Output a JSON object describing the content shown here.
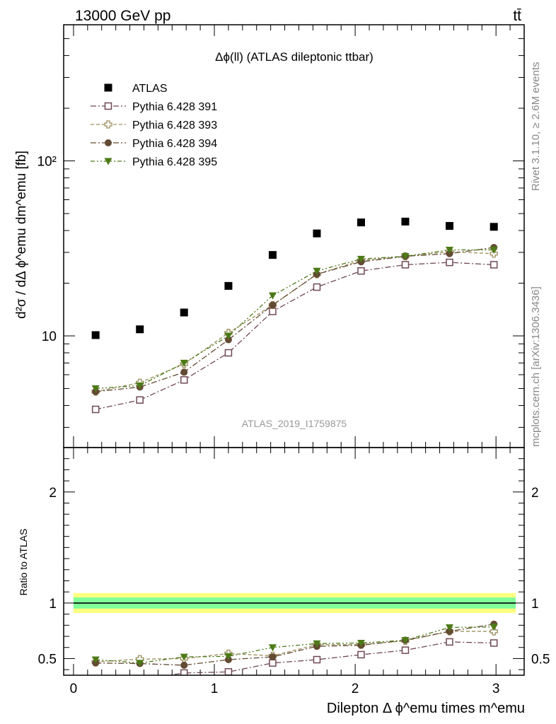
{
  "header": {
    "energy": "13000 GeV pp",
    "process": "tt̄"
  },
  "side_labels": {
    "rivet": "Rivet 3.1.10, ≥ 2.6M events",
    "mcplots": "mcplots.cern.ch [arXiv:1306.3436]"
  },
  "analysis_id": "ATLAS_2019_I1759875",
  "colors": {
    "ATLAS": "#000000",
    "Pythia 6.428 391": "#6f4856",
    "Pythia 6.428 393": "#9a8e5e",
    "Pythia 6.428 394": "#634a33",
    "Pythia 6.428 395": "#4c7a17",
    "band_inner": "#80ff99",
    "band_outer": "#ffff80"
  },
  "chart_data": [
    {
      "type": "scatter",
      "panel": "main",
      "title": "Δϕ(ll) (ATLAS dileptonic ttbar)",
      "ylabel": "d²σ / dΔ ϕ^emu dm^emu [fb]",
      "yscale": "log",
      "ylim": [
        2.3,
        600
      ],
      "xlim": [
        -0.07,
        3.2
      ],
      "ytick_labels": [
        "10",
        "10²"
      ],
      "legend_position": "top-left",
      "x": [
        0.157,
        0.471,
        0.785,
        1.1,
        1.414,
        1.728,
        2.042,
        2.356,
        2.67,
        2.985
      ],
      "series": [
        {
          "name": "ATLAS",
          "marker": "filled-square",
          "values": [
            10.1,
            10.9,
            13.6,
            19.3,
            29.0,
            38.5,
            44.5,
            45.0,
            42.5,
            42.0
          ],
          "errors": [
            0.4,
            0.4,
            0.5,
            0.6,
            0.8,
            1.0,
            1.1,
            1.1,
            1.0,
            1.0
          ]
        },
        {
          "name": "Pythia 6.428 391",
          "marker": "open-square",
          "line": "dash-dot",
          "values": [
            3.8,
            4.3,
            5.6,
            8.0,
            13.8,
            19.0,
            23.5,
            25.5,
            26.3,
            25.5
          ],
          "errors": [
            0.1,
            0.1,
            0.1,
            0.2,
            0.3,
            0.4,
            0.4,
            0.4,
            0.4,
            0.4
          ]
        },
        {
          "name": "Pythia 6.428 393",
          "marker": "open-cross",
          "line": "dash",
          "values": [
            4.8,
            5.4,
            6.9,
            10.4,
            15.0,
            22.5,
            27.0,
            28.5,
            30.3,
            29.5
          ],
          "errors": [
            0.1,
            0.1,
            0.2,
            0.2,
            0.3,
            0.4,
            0.5,
            0.5,
            0.5,
            0.5
          ]
        },
        {
          "name": "Pythia 6.428 394",
          "marker": "filled-circle",
          "line": "dash-dot",
          "values": [
            4.8,
            5.1,
            6.2,
            9.5,
            15.0,
            22.5,
            26.5,
            28.5,
            29.5,
            32.0
          ],
          "errors": [
            0.1,
            0.1,
            0.2,
            0.2,
            0.3,
            0.4,
            0.5,
            0.5,
            0.5,
            0.5
          ]
        },
        {
          "name": "Pythia 6.428 395",
          "marker": "filled-triangle-down",
          "line": "dash-dot-dot",
          "values": [
            5.0,
            5.2,
            7.0,
            10.0,
            17.0,
            23.5,
            27.5,
            28.5,
            31.0,
            31.0
          ],
          "errors": [
            0.1,
            0.1,
            0.2,
            0.2,
            0.3,
            0.4,
            0.5,
            0.5,
            0.5,
            0.5
          ]
        }
      ]
    },
    {
      "type": "scatter",
      "panel": "ratio",
      "ylabel": "Ratio to ATLAS",
      "xlabel": "Dilepton Δ ϕ^emu times m^emu",
      "ylim": [
        0.35,
        2.4
      ],
      "xlim": [
        -0.07,
        3.2
      ],
      "xtick_labels": [
        "0",
        "1",
        "2",
        "3"
      ],
      "ytick_labels": [
        "0.5",
        "1",
        "2"
      ],
      "reference_band": {
        "inner": 0.05,
        "outer": 0.09
      },
      "x": [
        0.157,
        0.471,
        0.785,
        1.1,
        1.414,
        1.728,
        2.042,
        2.356,
        2.67,
        2.985
      ],
      "series": [
        {
          "name": "Pythia 6.428 391",
          "values": [
            0.31,
            0.31,
            0.37,
            0.38,
            0.46,
            0.49,
            0.535,
            0.575,
            0.65,
            0.64
          ]
        },
        {
          "name": "Pythia 6.428 393",
          "values": [
            0.47,
            0.495,
            0.5,
            0.545,
            0.525,
            0.625,
            0.625,
            0.66,
            0.745,
            0.745
          ]
        },
        {
          "name": "Pythia 6.428 394",
          "values": [
            0.46,
            0.455,
            0.44,
            0.49,
            0.515,
            0.61,
            0.62,
            0.665,
            0.745,
            0.81
          ]
        },
        {
          "name": "Pythia 6.428 395",
          "values": [
            0.49,
            0.46,
            0.515,
            0.52,
            0.6,
            0.635,
            0.64,
            0.665,
            0.78,
            0.785
          ]
        }
      ]
    }
  ]
}
